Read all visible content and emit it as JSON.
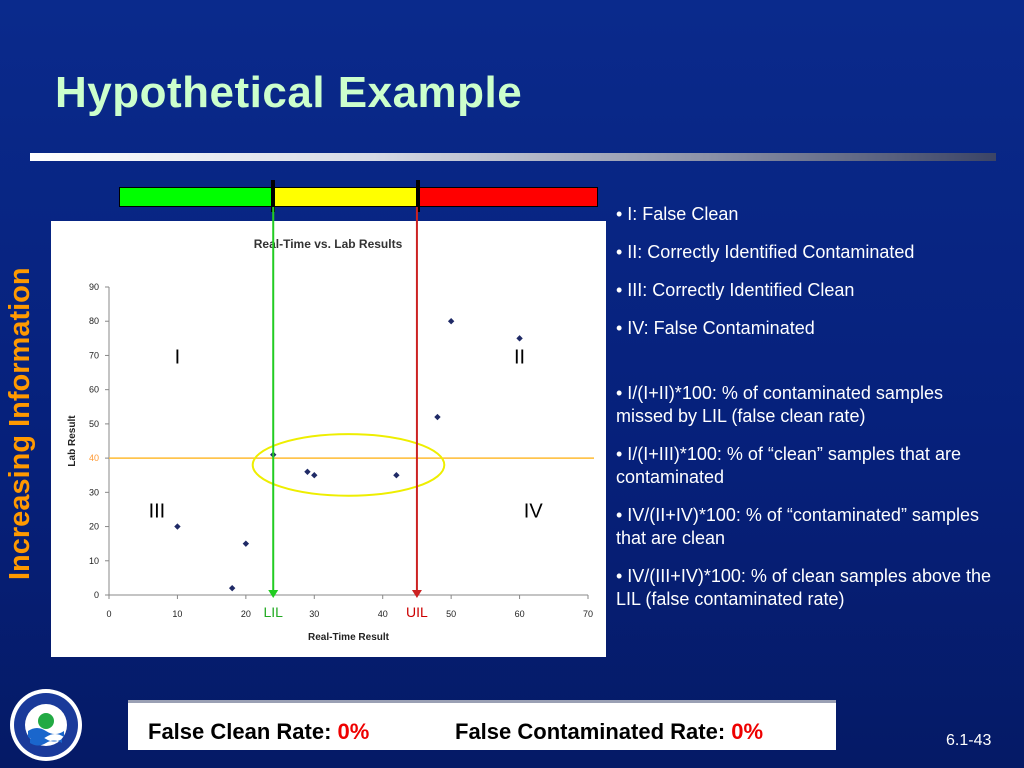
{
  "slide": {
    "title": "Hypothetical Example",
    "side_label": "Increasing Information",
    "slide_number": "6.1-43"
  },
  "colors": {
    "green_zone": "#00ff00",
    "yellow_zone": "#ffff00",
    "red_zone": "#ff0000",
    "lil_line": "#22cc22",
    "uil_line": "#cc2222",
    "threshold_line": "#ffbb33",
    "ellipse": "#eeee00",
    "point": "#1f2a66"
  },
  "legend": {
    "items": [
      "• I: False Clean",
      "• II: Correctly Identified Contaminated",
      "• III: Correctly Identified Clean",
      "• IV: False Contaminated"
    ],
    "formulas": [
      "• I/(I+II)*100: % of contaminated samples missed by LIL (false clean rate)",
      "• I/(I+III)*100: % of “clean” samples that are contaminated",
      "• IV/(II+IV)*100: % of “contaminated” samples that are clean",
      "• IV/(III+IV)*100: % of clean samples above the LIL (false contaminated rate)"
    ]
  },
  "results": {
    "false_clean_label": "False Clean Rate:",
    "false_clean_value": "0%",
    "false_contaminated_label": "False Contaminated Rate:",
    "false_contaminated_value": "0%"
  },
  "chart_data": {
    "type": "scatter",
    "title": "Real-Time vs. Lab Results",
    "xlabel": "Real-Time Result",
    "ylabel": "Lab Result",
    "xlim": [
      0,
      70
    ],
    "ylim": [
      0,
      90
    ],
    "xticks": [
      0,
      10,
      20,
      30,
      40,
      50,
      60,
      70
    ],
    "xtick_labels": [
      "0",
      "10",
      "20",
      "30",
      "40",
      "50",
      "60",
      "70"
    ],
    "yticks": [
      0,
      10,
      20,
      30,
      40,
      50,
      60,
      70,
      80,
      90
    ],
    "grid": false,
    "points": [
      {
        "x": 10,
        "y": 20
      },
      {
        "x": 18,
        "y": 2
      },
      {
        "x": 20,
        "y": 15
      },
      {
        "x": 24,
        "y": 41
      },
      {
        "x": 29,
        "y": 36
      },
      {
        "x": 30,
        "y": 35
      },
      {
        "x": 42,
        "y": 35
      },
      {
        "x": 48,
        "y": 52
      },
      {
        "x": 50,
        "y": 80
      },
      {
        "x": 60,
        "y": 75
      }
    ],
    "threshold_y": 40,
    "lil_x": 24,
    "uil_x": 45,
    "lil_label": "LIL",
    "uil_label": "UIL",
    "quadrants": [
      {
        "label": "I",
        "x": 10,
        "y": 70
      },
      {
        "label": "II",
        "x": 60,
        "y": 70
      },
      {
        "label": "III",
        "x": 7,
        "y": 25
      },
      {
        "label": "IV",
        "x": 62,
        "y": 25
      }
    ],
    "ellipse": {
      "cx": 35,
      "cy": 38,
      "rx": 14,
      "ry": 9
    }
  }
}
